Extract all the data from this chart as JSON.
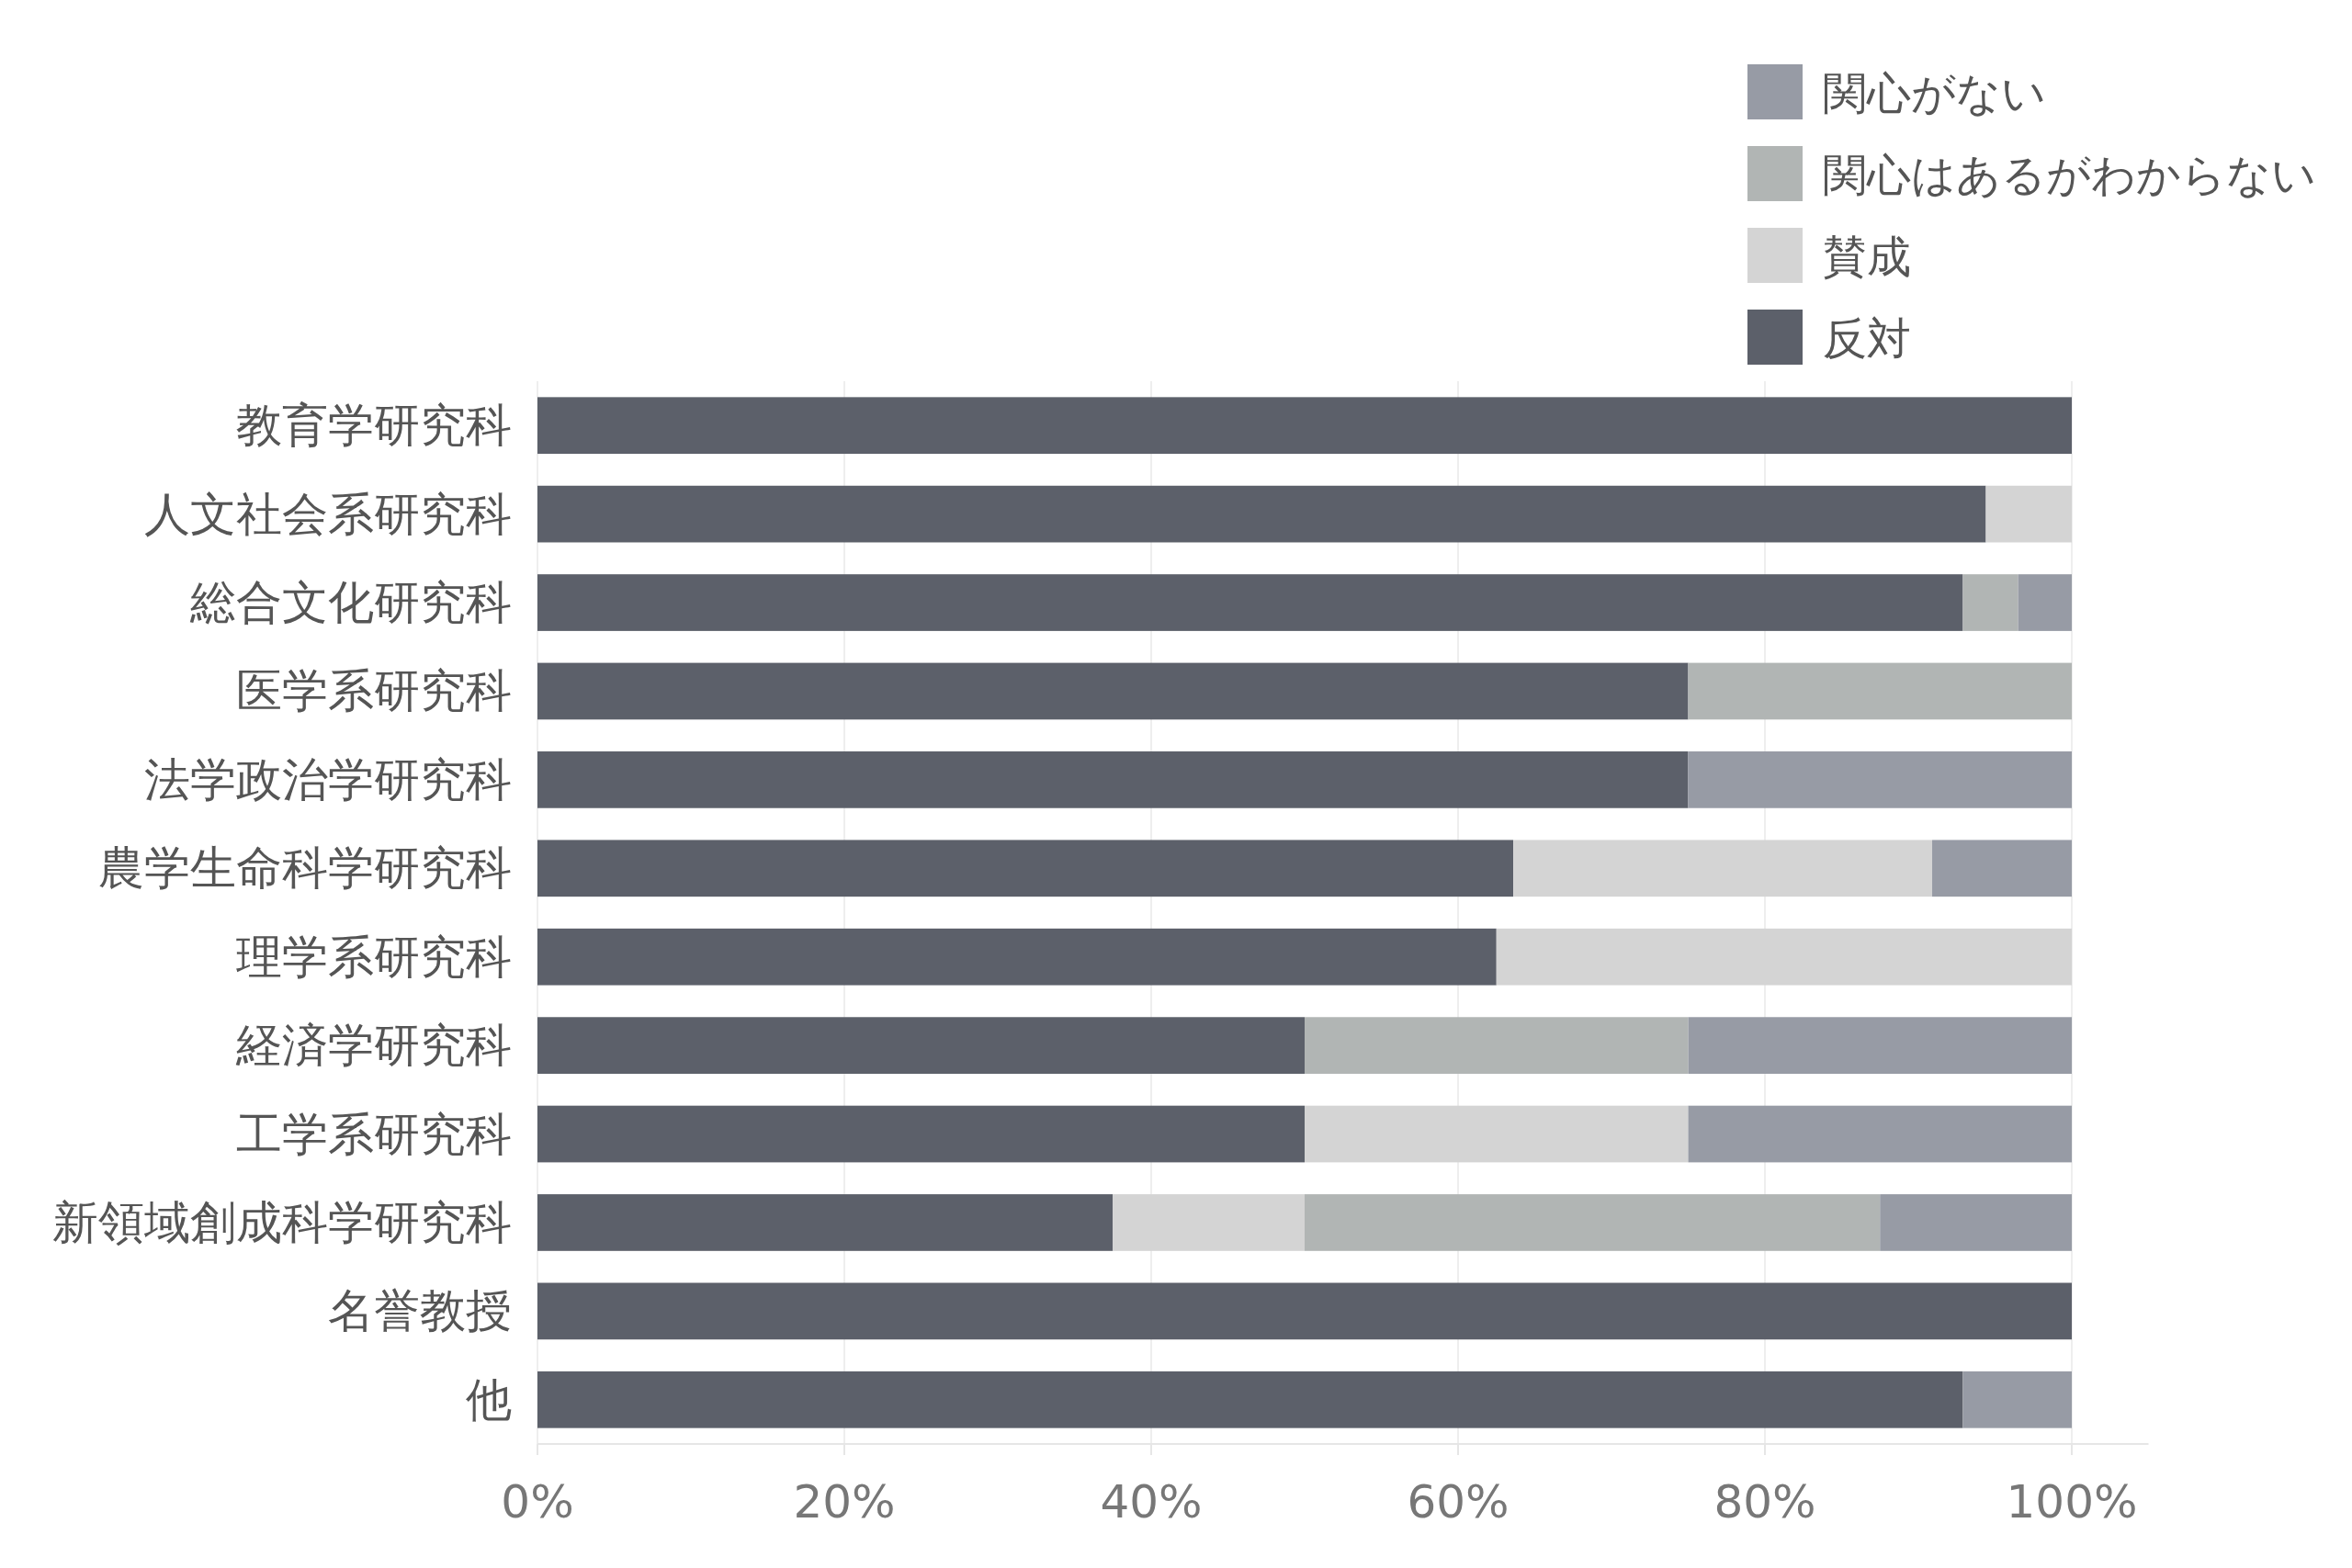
{
  "chart_data": {
    "type": "bar",
    "orientation": "horizontal",
    "stacked": true,
    "categories": [
      "教育学研究科",
      "人文社会系研究科",
      "総合文化研究科",
      "医学系研究科",
      "法学政治学研究科",
      "農学生命科学研究科",
      "理学系研究科",
      "経済学研究科",
      "工学系研究科",
      "新領域創成科学研究科",
      "名誉教授",
      "他"
    ],
    "series": [
      {
        "name": "反対",
        "color": "#5c606a",
        "values": [
          100,
          94.4,
          92.9,
          75,
          75,
          63.6,
          62.5,
          50,
          50,
          37.5,
          100,
          92.9
        ]
      },
      {
        "name": "賛成",
        "color": "#d4d4d4",
        "values": [
          0,
          5.6,
          0,
          0,
          0,
          27.3,
          37.5,
          0,
          25,
          12.5,
          0,
          0
        ]
      },
      {
        "name": "関心はあるがわからない",
        "color": "#b1b5b4",
        "values": [
          0,
          0,
          3.6,
          25,
          0,
          0,
          0,
          25,
          0,
          37.5,
          0,
          0
        ]
      },
      {
        "name": "関心がない",
        "color": "#979ba5",
        "values": [
          0,
          0,
          3.5,
          0,
          25,
          9.1,
          0,
          25,
          25,
          12.5,
          0,
          7.1
        ]
      }
    ],
    "xlim": [
      0,
      105
    ],
    "xticks": [
      {
        "value": 0,
        "label": "0%"
      },
      {
        "value": 20,
        "label": "20%"
      },
      {
        "value": 40,
        "label": "40%"
      },
      {
        "value": 60,
        "label": "60%"
      },
      {
        "value": 80,
        "label": "80%"
      },
      {
        "value": 100,
        "label": "100%"
      }
    ],
    "grid": "x",
    "legend": "top right"
  }
}
